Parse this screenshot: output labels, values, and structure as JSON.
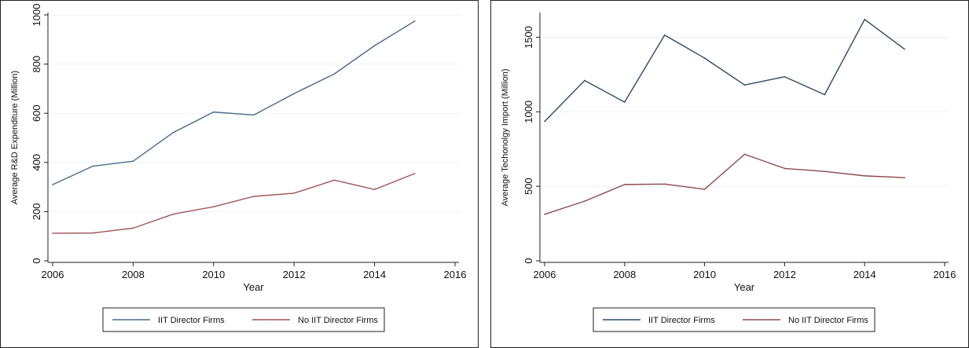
{
  "chart_data": [
    {
      "type": "line",
      "xlabel": "Year",
      "ylabel": "Average R&D Expenditure (Million)",
      "xlim": [
        2006,
        2016
      ],
      "ylim": [
        0,
        1000
      ],
      "xticks": [
        2006,
        2008,
        2010,
        2012,
        2014,
        2016
      ],
      "yticks": [
        0,
        200,
        400,
        600,
        800,
        1000
      ],
      "grid": true,
      "legend_position": "bottom",
      "x": [
        2006,
        2007,
        2008,
        2009,
        2010,
        2011,
        2012,
        2013,
        2014,
        2015
      ],
      "series": [
        {
          "name": "IIT Director Firms",
          "color": "#4c6a8a",
          "values": [
            310,
            385,
            405,
            522,
            605,
            593,
            680,
            760,
            875,
            975
          ]
        },
        {
          "name": "No IIT Director Firms",
          "color": "#a0545a",
          "values": [
            112,
            113,
            133,
            190,
            220,
            262,
            275,
            328,
            290,
            355
          ]
        }
      ]
    },
    {
      "type": "line",
      "xlabel": "Year",
      "ylabel": "Average Techonolgy Import (Million)",
      "xlim": [
        2006,
        2016
      ],
      "ylim": [
        0,
        1650
      ],
      "xticks": [
        2006,
        2008,
        2010,
        2012,
        2014,
        2016
      ],
      "yticks": [
        0,
        500,
        1000,
        1500
      ],
      "grid": true,
      "legend_position": "bottom",
      "x": [
        2006,
        2007,
        2008,
        2009,
        2010,
        2011,
        2012,
        2013,
        2014,
        2015
      ],
      "series": [
        {
          "name": "IIT Director Firms",
          "color": "#2e4a66",
          "values": [
            935,
            1210,
            1065,
            1515,
            1360,
            1180,
            1235,
            1115,
            1620,
            1420
          ]
        },
        {
          "name": "No IIT Director Firms",
          "color": "#8c4a4f",
          "values": [
            312,
            400,
            512,
            515,
            480,
            715,
            620,
            600,
            570,
            558
          ]
        }
      ]
    }
  ]
}
